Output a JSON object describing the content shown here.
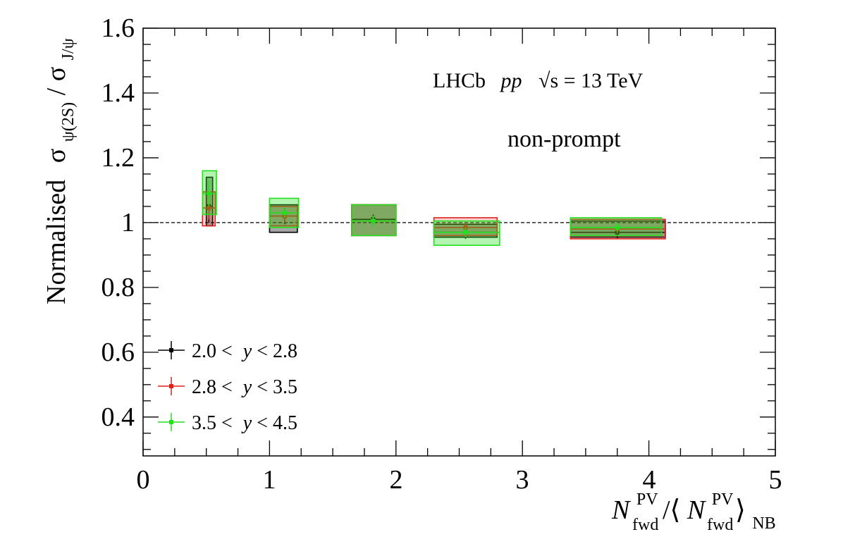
{
  "chart_data": {
    "type": "scatter",
    "xlim": [
      0,
      5
    ],
    "ylim": [
      0.28,
      1.6
    ],
    "x_ticks": [
      "0",
      "1",
      "2",
      "3",
      "4",
      "5"
    ],
    "y_ticks": [
      "0.4",
      "0.6",
      "0.8",
      "1",
      "1.2",
      "1.4",
      "1.6"
    ],
    "reference_line_y": 1,
    "annotation": {
      "experiment": "LHCb",
      "collision": "pp",
      "energy": "√s = 13 TeV",
      "label": "non-prompt"
    },
    "ylabel": {
      "prefix": "Normalised",
      "num_symbol": "σ",
      "num_sub": "ψ(2S)",
      "slash": "/",
      "den_symbol": "σ",
      "den_sub": "J/ψ"
    },
    "xlabel": {
      "main": "N",
      "main_sup": "PV",
      "main_sub": "fwd",
      "sep": "/⟨",
      "inner": "N",
      "inner_sup": "PV",
      "inner_sub": "fwd",
      "close": "⟩",
      "outer_sub": "NB"
    },
    "legend": {
      "position": "bottom-left",
      "entries": [
        {
          "low": "2.0 <",
          "var": "y",
          "high": "< 2.8"
        },
        {
          "low": "2.8 <",
          "var": "y",
          "high": "< 3.5"
        },
        {
          "low": "3.5 <",
          "var": "y",
          "high": "< 4.5"
        }
      ]
    },
    "series": [
      {
        "color": "#000000",
        "points": [
          {
            "x": 0.52,
            "y": 1.05,
            "x_lo": 0.5,
            "x_hi": 0.55,
            "stat": 0.05,
            "syst_lo": 0.99,
            "syst_hi": 1.14
          },
          {
            "x": 1.12,
            "y": 1.02,
            "x_lo": 1.0,
            "x_hi": 1.22,
            "stat": 0.025,
            "syst_lo": 0.97,
            "syst_hi": 1.055
          },
          {
            "x": 1.82,
            "y": 1.01,
            "x_lo": 1.65,
            "x_hi": 2.0,
            "stat": 0.015,
            "syst_lo": 0.96,
            "syst_hi": 1.055
          },
          {
            "x": 2.55,
            "y": 0.97,
            "x_lo": 2.3,
            "x_hi": 2.8,
            "stat": 0.02,
            "syst_lo": 0.955,
            "syst_hi": 0.995
          },
          {
            "x": 3.75,
            "y": 0.97,
            "x_lo": 3.38,
            "x_hi": 4.13,
            "stat": 0.02,
            "syst_lo": 0.955,
            "syst_hi": 1.005
          }
        ]
      },
      {
        "color": "#e0201a",
        "points": [
          {
            "x": 0.52,
            "y": 1.045,
            "x_lo": 0.47,
            "x_hi": 0.57,
            "stat": 0.035,
            "syst_lo": 0.99,
            "syst_hi": 1.095
          },
          {
            "x": 1.12,
            "y": 1.02,
            "x_lo": 1.0,
            "x_hi": 1.22,
            "stat": 0.02,
            "syst_lo": 0.99,
            "syst_hi": 1.05
          },
          {
            "x": 1.82,
            "y": 1.005,
            "x_lo": 1.65,
            "x_hi": 2.0,
            "stat": 0.015,
            "syst_lo": 0.96,
            "syst_hi": 1.055
          },
          {
            "x": 2.55,
            "y": 0.985,
            "x_lo": 2.3,
            "x_hi": 2.8,
            "stat": 0.015,
            "syst_lo": 0.96,
            "syst_hi": 1.015
          },
          {
            "x": 3.75,
            "y": 0.98,
            "x_lo": 3.38,
            "x_hi": 4.13,
            "stat": 0.015,
            "syst_lo": 0.95,
            "syst_hi": 1.01
          }
        ]
      },
      {
        "color": "#22e01c",
        "points": [
          {
            "x": 0.52,
            "y": 1.09,
            "x_lo": 0.47,
            "x_hi": 0.58,
            "stat": 0.04,
            "syst_lo": 1.025,
            "syst_hi": 1.16
          },
          {
            "x": 1.12,
            "y": 1.03,
            "x_lo": 1.0,
            "x_hi": 1.23,
            "stat": 0.015,
            "syst_lo": 0.985,
            "syst_hi": 1.075
          },
          {
            "x": 1.82,
            "y": 1.005,
            "x_lo": 1.65,
            "x_hi": 2.0,
            "stat": 0.015,
            "syst_lo": 0.96,
            "syst_hi": 1.055
          },
          {
            "x": 2.55,
            "y": 0.97,
            "x_lo": 2.3,
            "x_hi": 2.82,
            "stat": 0.015,
            "syst_lo": 0.93,
            "syst_hi": 1.005
          },
          {
            "x": 3.75,
            "y": 0.985,
            "x_lo": 3.38,
            "x_hi": 4.1,
            "stat": 0.015,
            "syst_lo": 0.96,
            "syst_hi": 1.015
          }
        ]
      }
    ]
  }
}
